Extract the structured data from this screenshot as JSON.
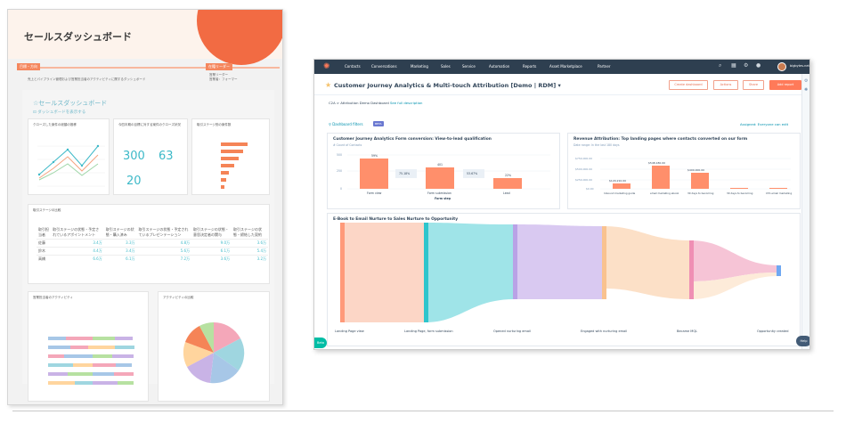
{
  "doc": {
    "title": "セールスダッシュボード",
    "tag1": "目標・方向",
    "tag2": "在籍リーダー",
    "header_text": "売上とパイプライン管理および営業担当者のアクティビティに関するダッシュボード",
    "side_text": "営業リーダー\n営業者：フォーマー",
    "subtitle": "セールスダッシュボード",
    "sub2": "ダッシュボードを表示する",
    "panel1_title": "クローズした案件の総額の推移",
    "panel2_title": "今四半期の目標に対する案件のクローズ状況",
    "panel3_title": "取引ステージ別の案件数",
    "kpi1": "300",
    "kpi2": "63",
    "kpi3": "20",
    "table_title": "取引ステージの比較",
    "table_headers": [
      "取引担当者",
      "取引ステージの状態・予定されているアポイントメント",
      "取引ステージの状態・購入済み",
      "取引ステージの状態・予定されているプレゼンテーション",
      "取引ステージの状態・意思決定者の関与",
      "取引ステージの状態・締結した契約"
    ],
    "table_rows": [
      {
        "name": "佐藤",
        "v": [
          "3.4万",
          "3.3万",
          "4.8万",
          "9.0万",
          "3.6万"
        ]
      },
      {
        "name": "鈴木",
        "v": [
          "4.4万",
          "3.4万",
          "5.6万",
          "6.1万",
          "5.4万"
        ]
      },
      {
        "name": "高橋",
        "v": [
          "6.6万",
          "6.1万",
          "7.2万",
          "3.6万",
          "3.2万"
        ]
      }
    ],
    "panel4_title": "営業担当者のアクティビティ",
    "panel5_title": "アクティビティの比較"
  },
  "app": {
    "nav": [
      "Contacts",
      "Conversations",
      "Marketing",
      "Sales",
      "Service",
      "Automation",
      "Reports",
      "Asset Marketplace",
      "Partner"
    ],
    "account": "bigbytes.net",
    "title": "Customer Journey Analytics & Multi-touch Attribution [Demo | RDM]",
    "buttons": [
      "Create dashboard",
      "Actions",
      "Share",
      "Add report"
    ],
    "crumb_prefix": "C2A > Attribution Demo Dashboard",
    "crumb_link": "See full description",
    "filters": "Dashboard filters",
    "beta": "BETA",
    "assigned_label": "Assigned:",
    "assigned_value": "Everyone can edit",
    "card1_title": "Customer Journey Analytics Form conversion: View-to-lead qualification",
    "card1_sub": "# Count of Contacts",
    "card1_xlabel": "Form step",
    "card1_steps": [
      "Form view",
      "Form submission",
      "Lead"
    ],
    "card1_values": [
      "59%",
      "401",
      "22%"
    ],
    "card1_rates": [
      "75.18%",
      "53.67%"
    ],
    "card1_ticks": [
      "500",
      "250",
      "0"
    ],
    "card2_title": "Revenue Attribution: Top landing pages where contacts converted on our form",
    "card2_sub": "Date range: In the last 180 days",
    "card2_ticks": [
      "$750,000.00",
      "$500,000.00",
      "$250,000.00",
      "$0.00"
    ],
    "card2_values": [
      "$120,210.00",
      "$548,180.00",
      "$400,000.00"
    ],
    "card2_cats": [
      "Inbound marketing guide to business growth",
      "email marketing ebook",
      "30 days to becoming a blog pro ebook",
      "30 days to becoming a blog pro ebook (2)",
      "CTA email marketing ebook"
    ],
    "card3_title": "E-Book to Email Nurture to Sales Nurture to Opportunity",
    "sankey_labels": [
      "Landing Page view",
      "Landing Page, form submission",
      "Opened nurturing email",
      "Engaged with nurturing email",
      "Became MQL",
      "Opportunity created"
    ],
    "help": "Help",
    "beta_tab": "Beta"
  }
}
